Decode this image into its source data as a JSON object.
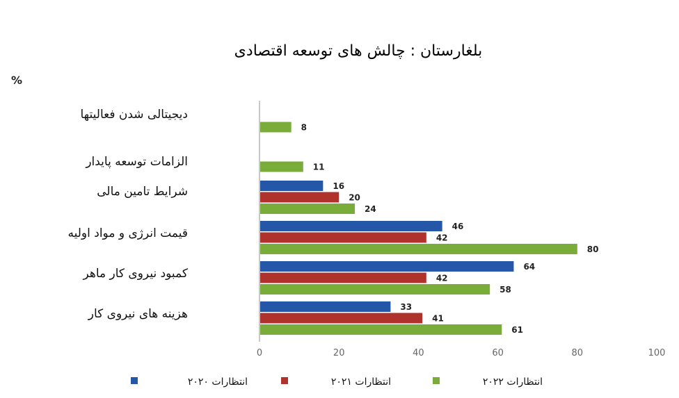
{
  "chart_data": {
    "type": "bar",
    "orientation": "horizontal",
    "title": "بلغارستان : چالش های توسعه اقتصادی",
    "unit_label": "%",
    "categories": [
      "دیجیتالی شدن  فعالیتها",
      "الزامات توسعه پایدار",
      "شرایط تامین مالی",
      "قیمت انرژی و مواد اولیه",
      "کمبود نیروی کار ماهر",
      "هزینه های نیروی کار"
    ],
    "series": [
      {
        "name": "انتظارات ۲۰۲۰",
        "color": "#2457a8",
        "values": [
          null,
          null,
          16,
          46,
          64,
          33
        ]
      },
      {
        "name": "انتظارات ۲۰۲۱",
        "color": "#b0322c",
        "values": [
          null,
          null,
          20,
          42,
          42,
          41
        ]
      },
      {
        "name": "انتظارات ۲۰۲۲",
        "color": "#7aac3a",
        "values": [
          8,
          11,
          24,
          80,
          58,
          61
        ]
      }
    ],
    "xlim": [
      0,
      100
    ],
    "xticks": [
      "0",
      "20",
      "40",
      "60",
      "80",
      "100"
    ],
    "legend_position": "bottom",
    "grid": false
  }
}
